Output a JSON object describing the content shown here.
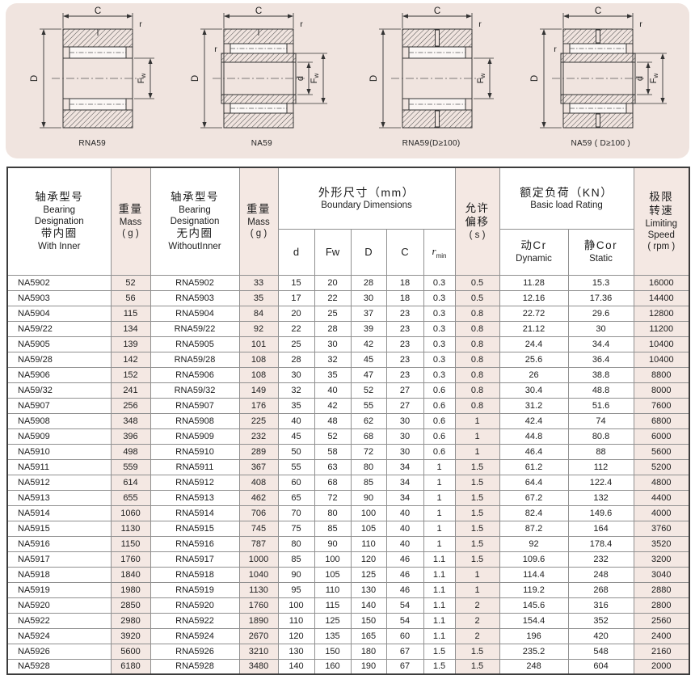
{
  "page": {
    "panel_bg": "#f0e4df",
    "cell_shade": "#f4e8e3",
    "border_dark": "#3c3c3c",
    "border_light": "#909090"
  },
  "diagrams": [
    {
      "label": "RNA59",
      "type": "rna",
      "oil": false,
      "dims": {
        "width": "C",
        "outer_dia": "D",
        "raceway_dia": "Fw",
        "chamfer": "r"
      }
    },
    {
      "label": "NA59",
      "type": "na",
      "oil": false,
      "dims": {
        "width": "C",
        "outer_dia": "D",
        "raceway_dia": "Fw",
        "bore_dia": "d",
        "chamfer": "r"
      }
    },
    {
      "label": "RNA59(D≥100)",
      "type": "rna",
      "oil": true,
      "dims": {
        "width": "C",
        "outer_dia": "D",
        "raceway_dia": "Fw",
        "chamfer": "r"
      }
    },
    {
      "label": "NA59 ( D≥100 )",
      "type": "na",
      "oil": true,
      "dims": {
        "width": "C",
        "outer_dia": "D",
        "raceway_dia": "Fw",
        "bore_dia": "d",
        "chamfer": "r"
      }
    }
  ],
  "table": {
    "header": {
      "with_inner": [
        "轴承型号",
        "Bearing",
        "Designation",
        "带内圈",
        "With Inner"
      ],
      "mass": [
        "重量",
        "Mass",
        "( g )"
      ],
      "without_inner": [
        "轴承型号",
        "Bearing",
        "Designation",
        "无内圈",
        "WithoutInner"
      ],
      "mass2": [
        "重量",
        "Mass",
        "( g )"
      ],
      "boundary": [
        "外形尺寸（mm）",
        "Boundary Dimensions"
      ],
      "dims": [
        "d",
        "Fw",
        "D",
        "C"
      ],
      "r_symbol": "r",
      "r_sub": "min",
      "misalignment": [
        "允许",
        "偏移",
        "( s )"
      ],
      "load": [
        "额定负荷（KN）",
        "Basic load Rating"
      ],
      "dynamic": [
        "动Cr",
        "Dynamic"
      ],
      "static": [
        "静Cor",
        "Static"
      ],
      "speed": [
        "极限",
        "转速",
        "Limiting",
        "Speed",
        "( rpm )"
      ]
    },
    "shaded_columns": [
      1,
      3,
      9,
      12
    ],
    "rows": [
      [
        "NA5902",
        "52",
        "RNA5902",
        "33",
        "15",
        "20",
        "28",
        "18",
        "0.3",
        "0.5",
        "11.28",
        "15.3",
        "16000"
      ],
      [
        "NA5903",
        "56",
        "RNA5903",
        "35",
        "17",
        "22",
        "30",
        "18",
        "0.3",
        "0.5",
        "12.16",
        "17.36",
        "14400"
      ],
      [
        "NA5904",
        "115",
        "RNA5904",
        "84",
        "20",
        "25",
        "37",
        "23",
        "0.3",
        "0.8",
        "22.72",
        "29.6",
        "12800"
      ],
      [
        "NA59/22",
        "134",
        "RNA59/22",
        "92",
        "22",
        "28",
        "39",
        "23",
        "0.3",
        "0.8",
        "21.12",
        "30",
        "11200"
      ],
      [
        "NA5905",
        "139",
        "RNA5905",
        "101",
        "25",
        "30",
        "42",
        "23",
        "0.3",
        "0.8",
        "24.4",
        "34.4",
        "10400"
      ],
      [
        "NA59/28",
        "142",
        "RNA59/28",
        "108",
        "28",
        "32",
        "45",
        "23",
        "0.3",
        "0.8",
        "25.6",
        "36.4",
        "10400"
      ],
      [
        "NA5906",
        "152",
        "RNA5906",
        "108",
        "30",
        "35",
        "47",
        "23",
        "0.3",
        "0.8",
        "26",
        "38.8",
        "8800"
      ],
      [
        "NA59/32",
        "241",
        "RNA59/32",
        "149",
        "32",
        "40",
        "52",
        "27",
        "0.6",
        "0.8",
        "30.4",
        "48.8",
        "8000"
      ],
      [
        "NA5907",
        "256",
        "RNA5907",
        "176",
        "35",
        "42",
        "55",
        "27",
        "0.6",
        "0.8",
        "31.2",
        "51.6",
        "7600"
      ],
      [
        "NA5908",
        "348",
        "RNA5908",
        "225",
        "40",
        "48",
        "62",
        "30",
        "0.6",
        "1",
        "42.4",
        "74",
        "6800"
      ],
      [
        "NA5909",
        "396",
        "RNA5909",
        "232",
        "45",
        "52",
        "68",
        "30",
        "0.6",
        "1",
        "44.8",
        "80.8",
        "6000"
      ],
      [
        "NA5910",
        "498",
        "RNA5910",
        "289",
        "50",
        "58",
        "72",
        "30",
        "0.6",
        "1",
        "46.4",
        "88",
        "5600"
      ],
      [
        "NA5911",
        "559",
        "RNA5911",
        "367",
        "55",
        "63",
        "80",
        "34",
        "1",
        "1.5",
        "61.2",
        "112",
        "5200"
      ],
      [
        "NA5912",
        "614",
        "RNA5912",
        "408",
        "60",
        "68",
        "85",
        "34",
        "1",
        "1.5",
        "64.4",
        "122.4",
        "4800"
      ],
      [
        "NA5913",
        "655",
        "RNA5913",
        "462",
        "65",
        "72",
        "90",
        "34",
        "1",
        "1.5",
        "67.2",
        "132",
        "4400"
      ],
      [
        "NA5914",
        "1060",
        "RNA5914",
        "706",
        "70",
        "80",
        "100",
        "40",
        "1",
        "1.5",
        "82.4",
        "149.6",
        "4000"
      ],
      [
        "NA5915",
        "1130",
        "RNA5915",
        "745",
        "75",
        "85",
        "105",
        "40",
        "1",
        "1.5",
        "87.2",
        "164",
        "3760"
      ],
      [
        "NA5916",
        "1150",
        "RNA5916",
        "787",
        "80",
        "90",
        "110",
        "40",
        "1",
        "1.5",
        "92",
        "178.4",
        "3520"
      ],
      [
        "NA5917",
        "1760",
        "RNA5917",
        "1000",
        "85",
        "100",
        "120",
        "46",
        "1.1",
        "1.5",
        "109.6",
        "232",
        "3200"
      ],
      [
        "NA5918",
        "1840",
        "RNA5918",
        "1040",
        "90",
        "105",
        "125",
        "46",
        "1.1",
        "1",
        "114.4",
        "248",
        "3040"
      ],
      [
        "NA5919",
        "1980",
        "RNA5919",
        "1130",
        "95",
        "110",
        "130",
        "46",
        "1.1",
        "1",
        "119.2",
        "268",
        "2880"
      ],
      [
        "NA5920",
        "2850",
        "RNA5920",
        "1760",
        "100",
        "115",
        "140",
        "54",
        "1.1",
        "2",
        "145.6",
        "316",
        "2800"
      ],
      [
        "NA5922",
        "2980",
        "RNA5922",
        "1890",
        "110",
        "125",
        "150",
        "54",
        "1.1",
        "2",
        "154.4",
        "352",
        "2560"
      ],
      [
        "NA5924",
        "3920",
        "RNA5924",
        "2670",
        "120",
        "135",
        "165",
        "60",
        "1.1",
        "2",
        "196",
        "420",
        "2400"
      ],
      [
        "NA5926",
        "5600",
        "RNA5926",
        "3210",
        "130",
        "150",
        "180",
        "67",
        "1.5",
        "1.5",
        "235.2",
        "548",
        "2160"
      ],
      [
        "NA5928",
        "6180",
        "RNA5928",
        "3480",
        "140",
        "160",
        "190",
        "67",
        "1.5",
        "1.5",
        "248",
        "604",
        "2000"
      ]
    ]
  }
}
